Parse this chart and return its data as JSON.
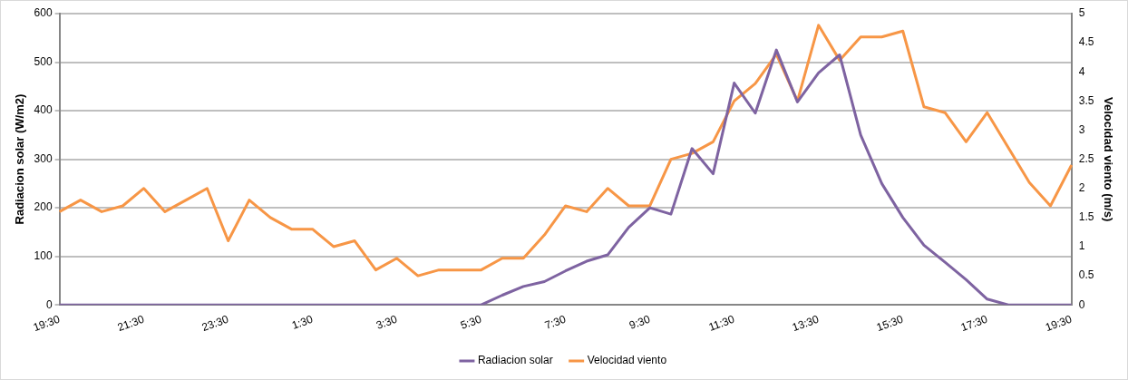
{
  "chart_data": {
    "type": "line",
    "categories": [
      "19:30",
      null,
      null,
      null,
      "21:30",
      null,
      null,
      null,
      "23:30",
      null,
      null,
      null,
      "1:30",
      null,
      null,
      null,
      "3:30",
      null,
      null,
      null,
      "5:30",
      null,
      null,
      null,
      "7:30",
      null,
      null,
      null,
      "9:30",
      null,
      null,
      null,
      "11:30",
      null,
      null,
      null,
      "13:30",
      null,
      null,
      null,
      "15:30",
      null,
      null,
      null,
      "17:30",
      null,
      null,
      null,
      "19:30"
    ],
    "series": [
      {
        "name": "Radiacion solar",
        "color": "#7e63a1",
        "values": [
          0,
          0,
          0,
          0,
          0,
          0,
          0,
          0,
          0,
          0,
          0,
          0,
          0,
          0,
          0,
          0,
          0,
          0,
          0,
          0,
          0,
          20,
          38,
          48,
          70,
          90,
          103,
          160,
          200,
          187,
          322,
          270,
          457,
          395,
          525,
          418,
          478,
          515,
          350,
          250,
          180,
          123,
          88,
          52,
          12,
          0,
          0,
          0,
          0
        ]
      },
      {
        "name": "Velocidad viento",
        "color": "#f79646",
        "axis": "y2",
        "values": [
          1.6,
          1.8,
          1.6,
          1.7,
          2.0,
          1.6,
          1.8,
          2.0,
          1.1,
          1.8,
          1.5,
          1.3,
          1.3,
          1.0,
          1.1,
          0.6,
          0.8,
          0.5,
          0.6,
          0.6,
          0.6,
          0.8,
          0.8,
          1.2,
          1.7,
          1.6,
          2.0,
          1.7,
          1.7,
          2.5,
          2.6,
          2.8,
          3.5,
          3.8,
          4.3,
          3.5,
          4.8,
          4.2,
          4.6,
          4.6,
          4.7,
          3.4,
          3.3,
          2.8,
          3.3,
          2.7,
          2.1,
          1.7,
          2.4
        ]
      }
    ],
    "ylabel": "Radiacion solar (W/m2)",
    "y2label": "Velocidad viento (m/s)",
    "ylim": [
      0,
      600
    ],
    "yticks": [
      0,
      100,
      200,
      300,
      400,
      500,
      600
    ],
    "y2lim": [
      0,
      5
    ],
    "y2ticks": [
      0,
      0.5,
      1,
      1.5,
      2,
      2.5,
      3,
      3.5,
      4,
      4.5,
      5
    ],
    "grid": "y",
    "legend": "bottom"
  }
}
